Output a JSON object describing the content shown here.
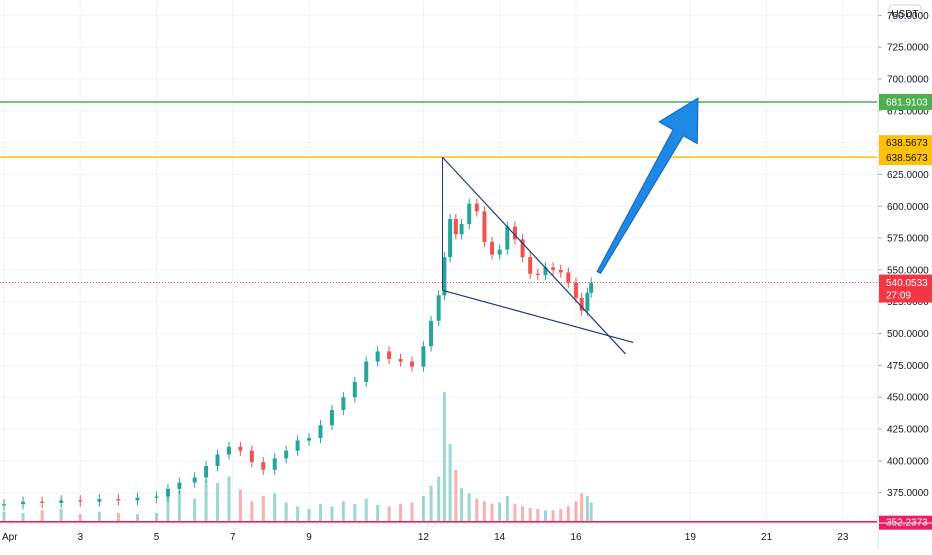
{
  "chart_data": {
    "type": "candlestick",
    "currency": "USDT",
    "ylim": [
      352,
      762
    ],
    "xlim": [
      1.0,
      24.0
    ],
    "y_ticks": [
      "375.0000",
      "400.0000",
      "425.0000",
      "450.0000",
      "475.0000",
      "500.0000",
      "525.0000",
      "550.0000",
      "575.0000",
      "600.0000",
      "625.0000",
      "650.0000",
      "675.0000",
      "700.0000",
      "725.0000",
      "750.0000"
    ],
    "x_ticks": [
      {
        "x": 1.0,
        "label": "Apr"
      },
      {
        "x": 3,
        "label": "3"
      },
      {
        "x": 5,
        "label": "5"
      },
      {
        "x": 7,
        "label": "7"
      },
      {
        "x": 9,
        "label": "9"
      },
      {
        "x": 12,
        "label": "12"
      },
      {
        "x": 14,
        "label": "14"
      },
      {
        "x": 16,
        "label": "16"
      },
      {
        "x": 19,
        "label": "19"
      },
      {
        "x": 21,
        "label": "21"
      },
      {
        "x": 23,
        "label": "23"
      }
    ],
    "price_series": [
      [
        1.0,
        366
      ],
      [
        1.5,
        368
      ],
      [
        2.0,
        367
      ],
      [
        2.5,
        369
      ],
      [
        3.0,
        368
      ],
      [
        3.5,
        370
      ],
      [
        4.0,
        369
      ],
      [
        4.5,
        371
      ],
      [
        5.0,
        372
      ],
      [
        5.3,
        378
      ],
      [
        5.6,
        383
      ],
      [
        6.0,
        387
      ],
      [
        6.3,
        396
      ],
      [
        6.6,
        405
      ],
      [
        6.9,
        411
      ],
      [
        7.2,
        408
      ],
      [
        7.5,
        399
      ],
      [
        7.8,
        393
      ],
      [
        8.1,
        402
      ],
      [
        8.4,
        408
      ],
      [
        8.7,
        416
      ],
      [
        9.0,
        418
      ],
      [
        9.3,
        428
      ],
      [
        9.6,
        440
      ],
      [
        9.9,
        450
      ],
      [
        10.2,
        462
      ],
      [
        10.5,
        478
      ],
      [
        10.8,
        486
      ],
      [
        11.1,
        480
      ],
      [
        11.4,
        478
      ],
      [
        11.7,
        474
      ],
      [
        12.0,
        490
      ],
      [
        12.2,
        510
      ],
      [
        12.4,
        530
      ],
      [
        12.55,
        560
      ],
      [
        12.7,
        590
      ],
      [
        12.85,
        578
      ],
      [
        13.0,
        586
      ],
      [
        13.2,
        602
      ],
      [
        13.4,
        596
      ],
      [
        13.6,
        572
      ],
      [
        13.8,
        562
      ],
      [
        14.0,
        566
      ],
      [
        14.2,
        584
      ],
      [
        14.4,
        574
      ],
      [
        14.6,
        560
      ],
      [
        14.8,
        547
      ],
      [
        15.0,
        546
      ],
      [
        15.2,
        552
      ],
      [
        15.4,
        550
      ],
      [
        15.6,
        548
      ],
      [
        15.8,
        540
      ],
      [
        16.0,
        528
      ],
      [
        16.15,
        518
      ],
      [
        16.3,
        532
      ],
      [
        16.4,
        540
      ]
    ],
    "volume_series": [
      [
        1.0,
        8
      ],
      [
        1.5,
        7
      ],
      [
        2.0,
        9
      ],
      [
        2.5,
        10
      ],
      [
        3.0,
        6
      ],
      [
        3.5,
        8
      ],
      [
        4.0,
        7
      ],
      [
        4.5,
        6
      ],
      [
        5.0,
        7
      ],
      [
        5.3,
        20
      ],
      [
        5.6,
        24
      ],
      [
        6.0,
        18
      ],
      [
        6.3,
        32
      ],
      [
        6.6,
        30
      ],
      [
        6.9,
        35
      ],
      [
        7.2,
        25
      ],
      [
        7.5,
        16
      ],
      [
        7.8,
        20
      ],
      [
        8.1,
        22
      ],
      [
        8.4,
        15
      ],
      [
        8.7,
        12
      ],
      [
        9.0,
        10
      ],
      [
        9.3,
        14
      ],
      [
        9.6,
        12
      ],
      [
        9.9,
        16
      ],
      [
        10.2,
        14
      ],
      [
        10.5,
        18
      ],
      [
        10.8,
        13
      ],
      [
        11.1,
        12
      ],
      [
        11.4,
        14
      ],
      [
        11.7,
        15
      ],
      [
        12.0,
        20
      ],
      [
        12.2,
        28
      ],
      [
        12.4,
        35
      ],
      [
        12.55,
        100
      ],
      [
        12.7,
        60
      ],
      [
        12.85,
        40
      ],
      [
        13.0,
        26
      ],
      [
        13.2,
        22
      ],
      [
        13.4,
        18
      ],
      [
        13.6,
        16
      ],
      [
        13.8,
        14
      ],
      [
        14.0,
        15
      ],
      [
        14.2,
        20
      ],
      [
        14.4,
        14
      ],
      [
        14.6,
        12
      ],
      [
        14.8,
        11
      ],
      [
        15.0,
        10
      ],
      [
        15.2,
        9
      ],
      [
        15.4,
        9
      ],
      [
        15.6,
        10
      ],
      [
        15.8,
        12
      ],
      [
        16.0,
        16
      ],
      [
        16.15,
        22
      ],
      [
        16.3,
        20
      ],
      [
        16.4,
        15
      ]
    ],
    "horizontal_levels": [
      {
        "value": 681.9103,
        "label": "681.9103",
        "color": "#4caf50"
      },
      {
        "value": 638.5673,
        "label": "638.5673",
        "color": "#ffc107"
      },
      {
        "value": 540.0533,
        "label": "540.0533",
        "color": "#f23645",
        "style": "dotted"
      },
      {
        "value": 352.2373,
        "label": "352.2373",
        "color": "#e91e63"
      }
    ],
    "price_tags": [
      {
        "value": 638.5673,
        "label": "638.5673",
        "color": "#ffc107"
      },
      {
        "value": 540.0533,
        "label": "540.0533",
        "countdown": "27:09",
        "color": "#f23645"
      }
    ],
    "trendlines": [
      {
        "from": [
          12.5,
          638.5
        ],
        "to": [
          17.3,
          484
        ],
        "color": "#1e3a8a"
      },
      {
        "from": [
          12.5,
          534
        ],
        "to": [
          17.5,
          493
        ],
        "color": "#1e3a8a"
      }
    ],
    "arrow": {
      "from": [
        16.6,
        548
      ],
      "to": [
        19.2,
        685
      ],
      "color": "#1e88e5"
    }
  }
}
